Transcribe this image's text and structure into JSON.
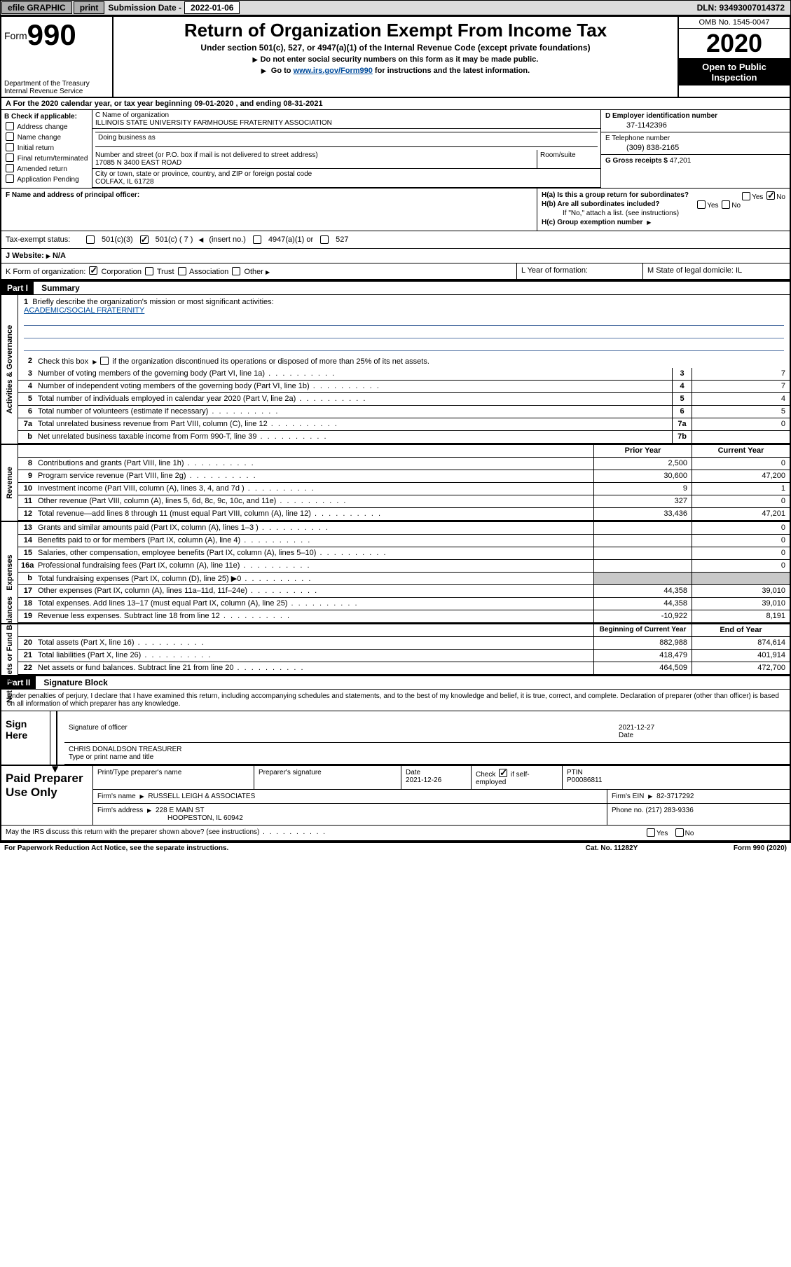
{
  "topbar": {
    "efile": "efile GRAPHIC",
    "print": "print",
    "subdate_label": "Submission Date - ",
    "subdate": "2022-01-06",
    "dln": "DLN: 93493007014372"
  },
  "header": {
    "form_label": "Form",
    "form_num": "990",
    "dept": "Department of the Treasury\nInternal Revenue Service",
    "title": "Return of Organization Exempt From Income Tax",
    "subtitle": "Under section 501(c), 527, or 4947(a)(1) of the Internal Revenue Code (except private foundations)",
    "instr1": "Do not enter social security numbers on this form as it may be made public.",
    "instr2_pre": "Go to ",
    "instr2_link": "www.irs.gov/Form990",
    "instr2_post": " for instructions and the latest information.",
    "omb": "OMB No. 1545-0047",
    "year": "2020",
    "inspection": "Open to Public Inspection"
  },
  "rowA": "A For the 2020 calendar year, or tax year beginning 09-01-2020    , and ending 08-31-2021",
  "colB": {
    "title": "B Check if applicable:",
    "items": [
      "Address change",
      "Name change",
      "Initial return",
      "Final return/terminated",
      "Amended return",
      "Application Pending"
    ]
  },
  "colC": {
    "name_label": "C Name of organization",
    "name": "ILLINOIS STATE UNIVERSITY FARMHOUSE FRATERNITY ASSOCIATION",
    "dba_label": "Doing business as",
    "street_label": "Number and street (or P.O. box if mail is not delivered to street address)",
    "street": "17085 N 3400 EAST ROAD",
    "room_label": "Room/suite",
    "city_label": "City or town, state or province, country, and ZIP or foreign postal code",
    "city": "COLFAX, IL  61728"
  },
  "colD": {
    "label": "D Employer identification number",
    "val": "37-1142396"
  },
  "colE": {
    "label": "E Telephone number",
    "val": "(309) 838-2165"
  },
  "colG": {
    "label": "G Gross receipts $ ",
    "val": "47,201"
  },
  "colF": {
    "label": "F Name and address of principal officer:"
  },
  "colH": {
    "a": "H(a)  Is this a group return for subordinates?",
    "b": "H(b)  Are all subordinates included?",
    "b_note": "If \"No,\" attach a list. (see instructions)",
    "c": "H(c)  Group exemption number "
  },
  "taxExempt": {
    "label": "Tax-exempt status:",
    "opts": [
      "501(c)(3)",
      "501(c) ( 7 )",
      "(insert no.)",
      "4947(a)(1) or",
      "527"
    ]
  },
  "website": {
    "label": "J    Website:",
    "val": " N/A"
  },
  "rowK": {
    "k": "K Form of organization:",
    "opts": [
      "Corporation",
      "Trust",
      "Association",
      "Other"
    ],
    "l": "L Year of formation:",
    "m": "M State of legal domicile: IL"
  },
  "parts": {
    "p1": "Part I",
    "p1_title": "Summary",
    "p2": "Part II",
    "p2_title": "Signature Block"
  },
  "summary": {
    "line1_label": "Briefly describe the organization's mission or most significant activities:",
    "mission": "ACADEMIC/SOCIAL FRATERNITY",
    "line2": "Check this box ▶          if the organization discontinued its operations or disposed of more than 25% of its net assets.",
    "rows": [
      {
        "n": "3",
        "d": "Number of voting members of the governing body (Part VI, line 1a)",
        "box": "3",
        "v2": "7"
      },
      {
        "n": "4",
        "d": "Number of independent voting members of the governing body (Part VI, line 1b)",
        "box": "4",
        "v2": "7"
      },
      {
        "n": "5",
        "d": "Total number of individuals employed in calendar year 2020 (Part V, line 2a)",
        "box": "5",
        "v2": "4"
      },
      {
        "n": "6",
        "d": "Total number of volunteers (estimate if necessary)",
        "box": "6",
        "v2": "5"
      },
      {
        "n": "7a",
        "d": "Total unrelated business revenue from Part VIII, column (C), line 12",
        "box": "7a",
        "v2": "0"
      },
      {
        "n": "b",
        "d": "Net unrelated business taxable income from Form 990-T, line 39",
        "box": "7b",
        "v2": ""
      }
    ],
    "revHead1": "Prior Year",
    "revHead2": "Current Year",
    "revenue": [
      {
        "n": "8",
        "d": "Contributions and grants (Part VIII, line 1h)",
        "v1": "2,500",
        "v2": "0"
      },
      {
        "n": "9",
        "d": "Program service revenue (Part VIII, line 2g)",
        "v1": "30,600",
        "v2": "47,200"
      },
      {
        "n": "10",
        "d": "Investment income (Part VIII, column (A), lines 3, 4, and 7d )",
        "v1": "9",
        "v2": "1"
      },
      {
        "n": "11",
        "d": "Other revenue (Part VIII, column (A), lines 5, 6d, 8c, 9c, 10c, and 11e)",
        "v1": "327",
        "v2": "0"
      },
      {
        "n": "12",
        "d": "Total revenue—add lines 8 through 11 (must equal Part VIII, column (A), line 12)",
        "v1": "33,436",
        "v2": "47,201"
      }
    ],
    "expenses": [
      {
        "n": "13",
        "d": "Grants and similar amounts paid (Part IX, column (A), lines 1–3 )",
        "v1": "",
        "v2": "0"
      },
      {
        "n": "14",
        "d": "Benefits paid to or for members (Part IX, column (A), line 4)",
        "v1": "",
        "v2": "0"
      },
      {
        "n": "15",
        "d": "Salaries, other compensation, employee benefits (Part IX, column (A), lines 5–10)",
        "v1": "",
        "v2": "0"
      },
      {
        "n": "16a",
        "d": "Professional fundraising fees (Part IX, column (A), line 11e)",
        "v1": "",
        "v2": "0"
      },
      {
        "n": "b",
        "d": "Total fundraising expenses (Part IX, column (D), line 25) ▶0",
        "v1": "gray",
        "v2": "gray"
      },
      {
        "n": "17",
        "d": "Other expenses (Part IX, column (A), lines 11a–11d, 11f–24e)",
        "v1": "44,358",
        "v2": "39,010"
      },
      {
        "n": "18",
        "d": "Total expenses. Add lines 13–17 (must equal Part IX, column (A), line 25)",
        "v1": "44,358",
        "v2": "39,010"
      },
      {
        "n": "19",
        "d": "Revenue less expenses. Subtract line 18 from line 12",
        "v1": "-10,922",
        "v2": "8,191"
      }
    ],
    "naHead1": "Beginning of Current Year",
    "naHead2": "End of Year",
    "netassets": [
      {
        "n": "20",
        "d": "Total assets (Part X, line 16)",
        "v1": "882,988",
        "v2": "874,614"
      },
      {
        "n": "21",
        "d": "Total liabilities (Part X, line 26)",
        "v1": "418,479",
        "v2": "401,914"
      },
      {
        "n": "22",
        "d": "Net assets or fund balances. Subtract line 21 from line 20",
        "v1": "464,509",
        "v2": "472,700"
      }
    ],
    "vlabels": [
      "Activities & Governance",
      "Revenue",
      "Expenses",
      "Net Assets or Fund Balances"
    ]
  },
  "sig": {
    "penalty": "Under penalties of perjury, I declare that I have examined this return, including accompanying schedules and statements, and to the best of my knowledge and belief, it is true, correct, and complete. Declaration of preparer (other than officer) is based on all information of which preparer has any knowledge.",
    "sign_here": "Sign Here",
    "sig_of_officer": "Signature of officer",
    "date": "2021-12-27",
    "date_label": "Date",
    "officer": "CHRIS DONALDSON  TREASURER",
    "type_label": "Type or print name and title"
  },
  "prep": {
    "label": "Paid Preparer Use Only",
    "h_name": "Print/Type preparer's name",
    "h_sig": "Preparer's signature",
    "h_date": "Date",
    "date": "2021-12-26",
    "h_check": "Check         if self-employed",
    "h_ptin": "PTIN",
    "ptin": "P00086811",
    "firm_name_label": "Firm's name    ",
    "firm_name": "RUSSELL LEIGH & ASSOCIATES",
    "firm_ein_label": "Firm's EIN ",
    "firm_ein": "82-3717292",
    "firm_addr_label": "Firm's address ",
    "firm_addr1": "228 E MAIN ST",
    "firm_addr2": "HOOPESTON, IL  60942",
    "phone_label": "Phone no. ",
    "phone": "(217) 283-9336"
  },
  "footer": {
    "discuss": "May the IRS discuss this return with the preparer shown above? (see instructions)",
    "paperwork": "For Paperwork Reduction Act Notice, see the separate instructions.",
    "cat": "Cat. No. 11282Y",
    "form": "Form 990 (2020)"
  }
}
